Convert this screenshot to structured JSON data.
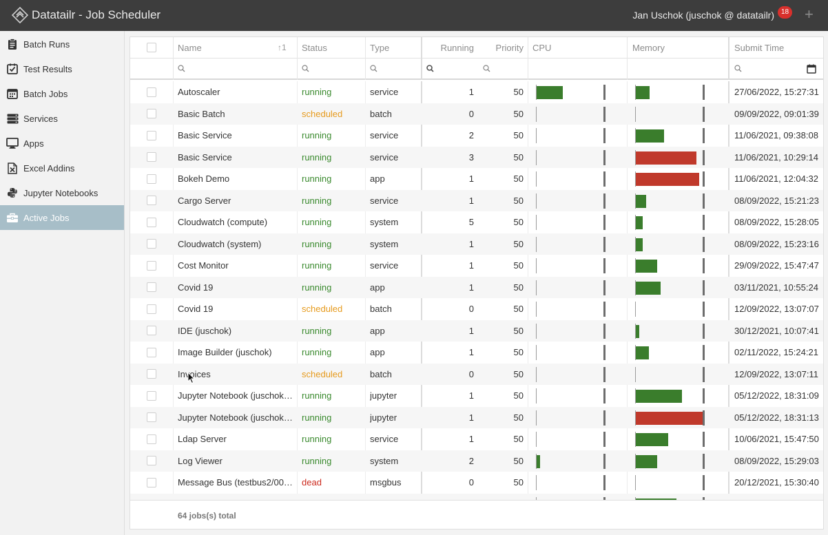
{
  "header": {
    "title": "Datatailr - Job Scheduler",
    "user": "Jan Uschok (juschok @ datatailr)",
    "notification_count": "18",
    "add_label": "+"
  },
  "sidebar": {
    "items": [
      {
        "label": "Batch Runs",
        "icon": "clipboard-icon"
      },
      {
        "label": "Test Results",
        "icon": "checklist-icon"
      },
      {
        "label": "Batch Jobs",
        "icon": "calendar-icon"
      },
      {
        "label": "Services",
        "icon": "server-icon"
      },
      {
        "label": "Apps",
        "icon": "monitor-icon"
      },
      {
        "label": "Excel Addins",
        "icon": "excel-icon"
      },
      {
        "label": "Jupyter Notebooks",
        "icon": "python-icon"
      },
      {
        "label": "Active Jobs",
        "icon": "toolbox-icon",
        "active": true
      }
    ]
  },
  "table": {
    "columns": {
      "name": "Name",
      "name_sort": "↑1",
      "status": "Status",
      "type": "Type",
      "running": "Running",
      "priority": "Priority",
      "cpu": "CPU",
      "memory": "Memory",
      "submit_time": "Submit Time"
    },
    "rows": [
      {
        "name": "Autoscaler",
        "status": "running",
        "type": "service",
        "running": "1",
        "priority": "50",
        "cpu": 0.39,
        "memory": 0.2,
        "submit": "27/06/2022, 15:27:31"
      },
      {
        "name": "Basic Batch",
        "status": "scheduled",
        "type": "batch",
        "running": "0",
        "priority": "50",
        "cpu": 0,
        "memory": 0,
        "submit": "09/09/2022, 09:01:39"
      },
      {
        "name": "Basic Service",
        "status": "running",
        "type": "service",
        "running": "2",
        "priority": "50",
        "cpu": 0,
        "memory": 0.42,
        "submit": "11/06/2021, 09:38:08"
      },
      {
        "name": "Basic Service",
        "status": "running",
        "type": "service",
        "running": "3",
        "priority": "50",
        "cpu": 0,
        "memory": 0.9,
        "submit": "11/06/2021, 10:29:14",
        "mem_high": true
      },
      {
        "name": "Bokeh Demo",
        "status": "running",
        "type": "app",
        "running": "1",
        "priority": "50",
        "cpu": 0,
        "memory": 0.94,
        "submit": "11/06/2021, 12:04:32",
        "mem_high": true
      },
      {
        "name": "Cargo Server",
        "status": "running",
        "type": "service",
        "running": "1",
        "priority": "50",
        "cpu": 0,
        "memory": 0.15,
        "submit": "08/09/2022, 15:21:23"
      },
      {
        "name": "Cloudwatch (compute)",
        "status": "running",
        "type": "system",
        "running": "5",
        "priority": "50",
        "cpu": 0,
        "memory": 0.1,
        "submit": "08/09/2022, 15:28:05"
      },
      {
        "name": "Cloudwatch (system)",
        "status": "running",
        "type": "system",
        "running": "1",
        "priority": "50",
        "cpu": 0,
        "memory": 0.1,
        "submit": "08/09/2022, 15:23:16"
      },
      {
        "name": "Cost Monitor",
        "status": "running",
        "type": "service",
        "running": "1",
        "priority": "50",
        "cpu": 0,
        "memory": 0.32,
        "submit": "29/09/2022, 15:47:47"
      },
      {
        "name": "Covid 19",
        "status": "running",
        "type": "app",
        "running": "1",
        "priority": "50",
        "cpu": 0,
        "memory": 0.37,
        "submit": "03/11/2021, 10:55:24"
      },
      {
        "name": "Covid 19",
        "status": "scheduled",
        "type": "batch",
        "running": "0",
        "priority": "50",
        "cpu": 0,
        "memory": 0,
        "submit": "12/09/2022, 13:07:07"
      },
      {
        "name": "IDE (juschok)",
        "status": "running",
        "type": "app",
        "running": "1",
        "priority": "50",
        "cpu": 0,
        "memory": 0.05,
        "submit": "30/12/2021, 10:07:41"
      },
      {
        "name": "Image Builder (juschok)",
        "status": "running",
        "type": "app",
        "running": "1",
        "priority": "50",
        "cpu": 0,
        "memory": 0.19,
        "submit": "02/11/2022, 15:24:21"
      },
      {
        "name": "Invoices",
        "status": "scheduled",
        "type": "batch",
        "running": "0",
        "priority": "50",
        "cpu": 0,
        "memory": 0,
        "submit": "12/09/2022, 13:07:11"
      },
      {
        "name": "Jupyter Notebook (juschok…",
        "status": "running",
        "type": "jupyter",
        "running": "1",
        "priority": "50",
        "cpu": 0,
        "memory": 0.68,
        "submit": "05/12/2022, 18:31:09"
      },
      {
        "name": "Jupyter Notebook (juschok…",
        "status": "running",
        "type": "jupyter",
        "running": "1",
        "priority": "50",
        "cpu": 0,
        "memory": 0.99,
        "submit": "05/12/2022, 18:31:13",
        "mem_high": true
      },
      {
        "name": "Ldap Server",
        "status": "running",
        "type": "service",
        "running": "1",
        "priority": "50",
        "cpu": 0,
        "memory": 0.48,
        "submit": "10/06/2021, 15:47:50"
      },
      {
        "name": "Log Viewer",
        "status": "running",
        "type": "system",
        "running": "2",
        "priority": "50",
        "cpu": 0.05,
        "memory": 0.32,
        "submit": "08/09/2022, 15:29:03"
      },
      {
        "name": "Message Bus (testbus2/00…",
        "status": "dead",
        "type": "msgbus",
        "running": "0",
        "priority": "50",
        "cpu": 0,
        "memory": 0,
        "submit": "20/12/2021, 15:30:40"
      },
      {
        "name": "",
        "status": "",
        "type": "",
        "running": "",
        "priority": "",
        "cpu": 0,
        "memory": 0.6,
        "submit": ""
      }
    ]
  },
  "footer": {
    "total": "64 jobs(s) total"
  },
  "colors": {
    "bar_green": "#3a7d2c",
    "bar_red": "#c0392b",
    "running": "#3a8a2e",
    "scheduled": "#e69a1c",
    "dead": "#cc2a1e"
  }
}
